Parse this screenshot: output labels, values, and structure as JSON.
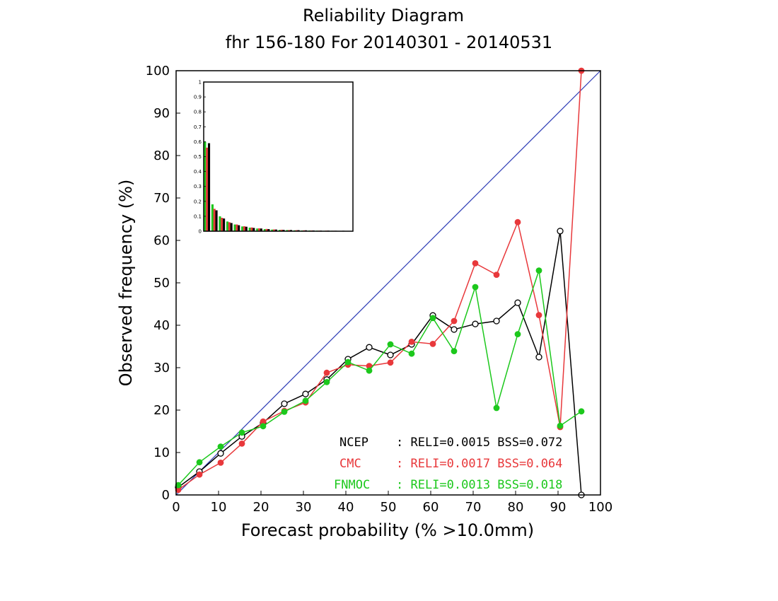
{
  "chart_data": {
    "type": "line",
    "title": "Reliability Diagram",
    "subtitle": "fhr 156-180 For 20140301 - 20140531",
    "xlabel": "Forecast probability (% >10.0mm)",
    "ylabel": "Observed frequency (%)",
    "xlim": [
      0,
      100
    ],
    "ylim": [
      0,
      100
    ],
    "x_ticks": [
      "0",
      "10",
      "20",
      "30",
      "40",
      "50",
      "60",
      "70",
      "80",
      "90",
      "100"
    ],
    "y_ticks": [
      "0",
      "10",
      "20",
      "30",
      "40",
      "50",
      "60",
      "70",
      "80",
      "90",
      "100"
    ],
    "grid": false,
    "diagonal_color": "#2d3bb5",
    "series": [
      {
        "name": "NCEP",
        "color": "#000000",
        "marker": "open-circle",
        "stats": ": RELI=0.0015 BSS=0.072",
        "x": [
          0.5,
          5.5,
          10.5,
          15.5,
          20.5,
          25.5,
          30.5,
          35.5,
          40.5,
          45.5,
          50.5,
          55.5,
          60.5,
          65.5,
          70.5,
          75.5,
          80.5,
          85.5,
          90.5,
          95.5
        ],
        "y": [
          1.8,
          5.5,
          9.8,
          13.8,
          17.0,
          21.5,
          23.8,
          27.2,
          32.0,
          34.8,
          33.0,
          35.5,
          42.3,
          39.0,
          40.3,
          41.0,
          45.3,
          32.5,
          62.2,
          0
        ]
      },
      {
        "name": "CMC",
        "color": "#e8383b",
        "marker": "filled-circle",
        "stats": ": RELI=0.0017 BSS=0.064",
        "x": [
          0.5,
          5.5,
          10.5,
          15.5,
          20.5,
          25.5,
          30.5,
          35.5,
          40.5,
          45.5,
          50.5,
          55.5,
          60.5,
          65.5,
          70.5,
          75.5,
          80.5,
          85.5,
          90.5,
          95.5
        ],
        "y": [
          1.2,
          4.8,
          7.6,
          12.1,
          17.3,
          19.8,
          21.8,
          28.8,
          30.7,
          30.4,
          31.2,
          36.1,
          35.6,
          41.0,
          54.6,
          51.9,
          64.3,
          42.4,
          16.0,
          100.0
        ]
      },
      {
        "name": "FNMOC",
        "color": "#1cc81c",
        "marker": "filled-circle",
        "stats": ": RELI=0.0013 BSS=0.018",
        "x": [
          0.5,
          5.5,
          10.5,
          15.5,
          20.5,
          25.5,
          30.5,
          35.5,
          40.5,
          45.5,
          50.5,
          55.5,
          60.5,
          65.5,
          70.5,
          75.5,
          80.5,
          85.5,
          90.5,
          95.5
        ],
        "y": [
          2.3,
          7.7,
          11.4,
          14.7,
          16.2,
          19.6,
          22.2,
          26.6,
          31.3,
          29.3,
          35.5,
          33.3,
          41.7,
          33.9,
          49.0,
          20.5,
          37.9,
          52.9,
          16.3,
          19.7
        ]
      }
    ],
    "inset": {
      "type": "bar",
      "ylim": [
        0,
        1
      ],
      "y_ticks": [
        "0",
        "0.1",
        "0.2",
        "0.3",
        "0.4",
        "0.5",
        "0.6",
        "0.7",
        "0.8",
        "0.9",
        "1"
      ],
      "bins": 20,
      "ncep": [
        0.59,
        0.14,
        0.085,
        0.055,
        0.04,
        0.03,
        0.022,
        0.018,
        0.014,
        0.011,
        0.009,
        0.008,
        0.007,
        0.006,
        0.005,
        0.004,
        0.004,
        0.003,
        0.003,
        0.002
      ],
      "cmc": [
        0.56,
        0.15,
        0.09,
        0.06,
        0.045,
        0.033,
        0.025,
        0.019,
        0.015,
        0.012,
        0.01,
        0.008,
        0.007,
        0.006,
        0.005,
        0.004,
        0.004,
        0.003,
        0.002,
        0.002
      ],
      "fnmoc": [
        0.6,
        0.18,
        0.1,
        0.065,
        0.045,
        0.032,
        0.024,
        0.018,
        0.014,
        0.011,
        0.009,
        0.008,
        0.006,
        0.005,
        0.005,
        0.004,
        0.003,
        0.003,
        0.002,
        0.002
      ]
    }
  }
}
